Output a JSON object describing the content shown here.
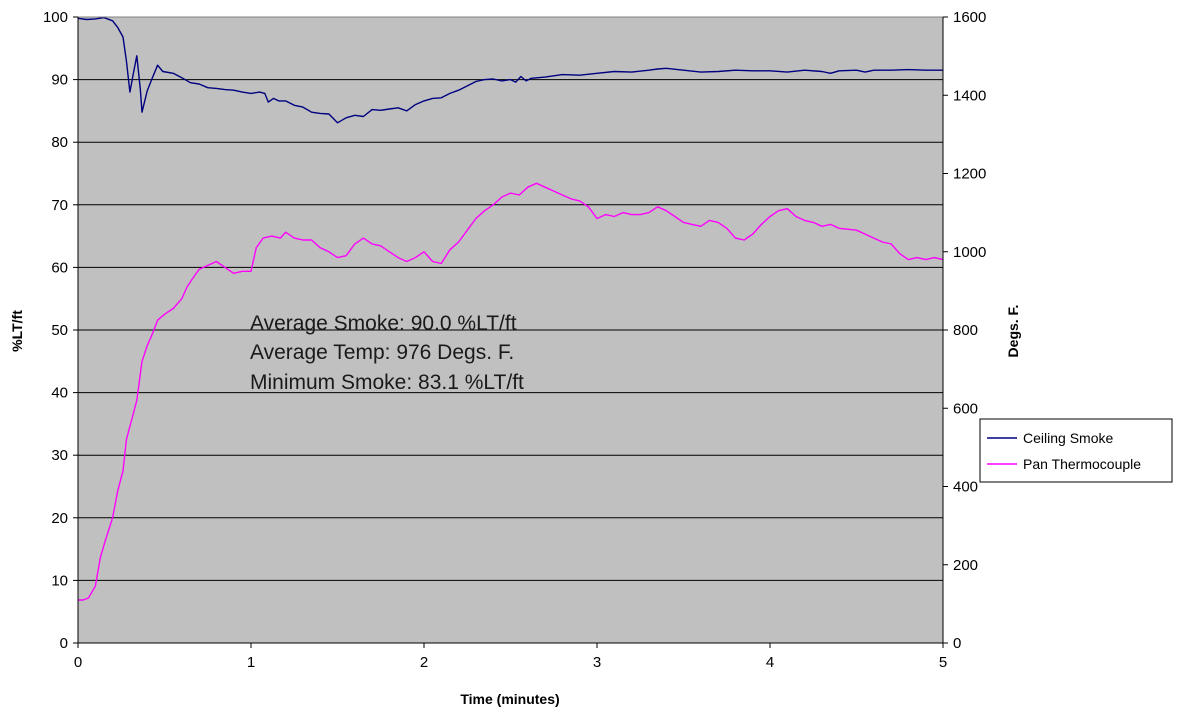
{
  "chart_data": {
    "type": "line",
    "title": "",
    "xlabel": "Time (minutes)",
    "ylabel_left": "%LT/ft",
    "ylabel_right": "Degs. F.",
    "xlim": [
      0,
      5
    ],
    "ylim_left": [
      0,
      100
    ],
    "ylim_right": [
      0,
      1600
    ],
    "x_ticks": [
      0,
      1,
      2,
      3,
      4,
      5
    ],
    "y_ticks_left": [
      0,
      10,
      20,
      30,
      40,
      50,
      60,
      70,
      80,
      90,
      100
    ],
    "y_ticks_right": [
      0,
      200,
      400,
      600,
      800,
      1000,
      1200,
      1400,
      1600
    ],
    "grid": "horizontal",
    "plot_background": "#c0c0c0",
    "legend_position": "right",
    "annotations": [
      "Average Smoke: 90.0 %LT/ft",
      "Average Temp: 976 Degs. F.",
      "Minimum Smoke: 83.1 %LT/ft"
    ],
    "series": [
      {
        "name": "Ceiling Smoke",
        "axis": "left",
        "color": "#000080",
        "points": [
          [
            0,
            99.8
          ],
          [
            0.05,
            99.6
          ],
          [
            0.1,
            99.7
          ],
          [
            0.15,
            99.9
          ],
          [
            0.2,
            99.4
          ],
          [
            0.23,
            98.3
          ],
          [
            0.26,
            96.8
          ],
          [
            0.28,
            93.0
          ],
          [
            0.3,
            88.0
          ],
          [
            0.32,
            91.0
          ],
          [
            0.34,
            93.8
          ],
          [
            0.36,
            88.5
          ],
          [
            0.37,
            84.8
          ],
          [
            0.4,
            88.2
          ],
          [
            0.43,
            90.3
          ],
          [
            0.46,
            92.3
          ],
          [
            0.49,
            91.3
          ],
          [
            0.55,
            91.0
          ],
          [
            0.6,
            90.3
          ],
          [
            0.65,
            89.5
          ],
          [
            0.7,
            89.3
          ],
          [
            0.75,
            88.7
          ],
          [
            0.8,
            88.6
          ],
          [
            0.85,
            88.4
          ],
          [
            0.9,
            88.3
          ],
          [
            0.95,
            88.0
          ],
          [
            1.0,
            87.8
          ],
          [
            1.05,
            88.0
          ],
          [
            1.08,
            87.8
          ],
          [
            1.1,
            86.4
          ],
          [
            1.13,
            87.0
          ],
          [
            1.16,
            86.6
          ],
          [
            1.2,
            86.6
          ],
          [
            1.25,
            85.9
          ],
          [
            1.3,
            85.6
          ],
          [
            1.35,
            84.8
          ],
          [
            1.4,
            84.6
          ],
          [
            1.45,
            84.5
          ],
          [
            1.5,
            83.1
          ],
          [
            1.55,
            83.9
          ],
          [
            1.6,
            84.3
          ],
          [
            1.65,
            84.1
          ],
          [
            1.7,
            85.2
          ],
          [
            1.75,
            85.1
          ],
          [
            1.8,
            85.3
          ],
          [
            1.85,
            85.5
          ],
          [
            1.9,
            85.0
          ],
          [
            1.95,
            86.0
          ],
          [
            2.0,
            86.6
          ],
          [
            2.05,
            87.0
          ],
          [
            2.1,
            87.1
          ],
          [
            2.15,
            87.8
          ],
          [
            2.2,
            88.3
          ],
          [
            2.25,
            89.0
          ],
          [
            2.3,
            89.7
          ],
          [
            2.35,
            90.0
          ],
          [
            2.4,
            90.1
          ],
          [
            2.45,
            89.8
          ],
          [
            2.5,
            90.0
          ],
          [
            2.53,
            89.6
          ],
          [
            2.56,
            90.5
          ],
          [
            2.59,
            89.8
          ],
          [
            2.62,
            90.2
          ],
          [
            2.7,
            90.4
          ],
          [
            2.8,
            90.8
          ],
          [
            2.9,
            90.7
          ],
          [
            3.0,
            91.0
          ],
          [
            3.1,
            91.3
          ],
          [
            3.2,
            91.2
          ],
          [
            3.3,
            91.5
          ],
          [
            3.35,
            91.7
          ],
          [
            3.4,
            91.8
          ],
          [
            3.5,
            91.5
          ],
          [
            3.6,
            91.2
          ],
          [
            3.7,
            91.3
          ],
          [
            3.8,
            91.5
          ],
          [
            3.9,
            91.4
          ],
          [
            4.0,
            91.4
          ],
          [
            4.1,
            91.2
          ],
          [
            4.2,
            91.5
          ],
          [
            4.3,
            91.3
          ],
          [
            4.35,
            91.0
          ],
          [
            4.4,
            91.4
          ],
          [
            4.5,
            91.5
          ],
          [
            4.55,
            91.2
          ],
          [
            4.6,
            91.5
          ],
          [
            4.7,
            91.5
          ],
          [
            4.8,
            91.6
          ],
          [
            4.9,
            91.5
          ],
          [
            5.0,
            91.5
          ]
        ]
      },
      {
        "name": "Pan Thermocouple",
        "axis": "right",
        "color": "#ff00ff",
        "points": [
          [
            0,
            110
          ],
          [
            0.03,
            110
          ],
          [
            0.06,
            115
          ],
          [
            0.1,
            145
          ],
          [
            0.13,
            220
          ],
          [
            0.16,
            265
          ],
          [
            0.2,
            320
          ],
          [
            0.23,
            390
          ],
          [
            0.26,
            440
          ],
          [
            0.28,
            520
          ],
          [
            0.31,
            570
          ],
          [
            0.34,
            620
          ],
          [
            0.37,
            720
          ],
          [
            0.4,
            760
          ],
          [
            0.43,
            790
          ],
          [
            0.46,
            825
          ],
          [
            0.5,
            840
          ],
          [
            0.55,
            855
          ],
          [
            0.6,
            880
          ],
          [
            0.63,
            910
          ],
          [
            0.66,
            930
          ],
          [
            0.7,
            955
          ],
          [
            0.75,
            965
          ],
          [
            0.8,
            975
          ],
          [
            0.85,
            960
          ],
          [
            0.9,
            945
          ],
          [
            0.95,
            950
          ],
          [
            1.0,
            950
          ],
          [
            1.03,
            1010
          ],
          [
            1.07,
            1035
          ],
          [
            1.12,
            1040
          ],
          [
            1.17,
            1035
          ],
          [
            1.2,
            1050
          ],
          [
            1.25,
            1035
          ],
          [
            1.3,
            1030
          ],
          [
            1.35,
            1030
          ],
          [
            1.4,
            1010
          ],
          [
            1.45,
            1000
          ],
          [
            1.5,
            985
          ],
          [
            1.55,
            990
          ],
          [
            1.6,
            1020
          ],
          [
            1.65,
            1035
          ],
          [
            1.7,
            1020
          ],
          [
            1.75,
            1015
          ],
          [
            1.8,
            1000
          ],
          [
            1.85,
            985
          ],
          [
            1.9,
            975
          ],
          [
            1.95,
            985
          ],
          [
            2.0,
            1000
          ],
          [
            2.05,
            975
          ],
          [
            2.1,
            970
          ],
          [
            2.15,
            1005
          ],
          [
            2.2,
            1025
          ],
          [
            2.25,
            1055
          ],
          [
            2.3,
            1085
          ],
          [
            2.35,
            1105
          ],
          [
            2.4,
            1120
          ],
          [
            2.45,
            1140
          ],
          [
            2.5,
            1150
          ],
          [
            2.55,
            1145
          ],
          [
            2.6,
            1165
          ],
          [
            2.65,
            1175
          ],
          [
            2.7,
            1165
          ],
          [
            2.75,
            1155
          ],
          [
            2.8,
            1145
          ],
          [
            2.85,
            1135
          ],
          [
            2.9,
            1130
          ],
          [
            2.95,
            1115
          ],
          [
            3.0,
            1085
          ],
          [
            3.05,
            1095
          ],
          [
            3.1,
            1090
          ],
          [
            3.15,
            1100
          ],
          [
            3.2,
            1095
          ],
          [
            3.25,
            1095
          ],
          [
            3.3,
            1100
          ],
          [
            3.35,
            1115
          ],
          [
            3.4,
            1105
          ],
          [
            3.45,
            1090
          ],
          [
            3.5,
            1075
          ],
          [
            3.55,
            1070
          ],
          [
            3.6,
            1065
          ],
          [
            3.65,
            1080
          ],
          [
            3.7,
            1075
          ],
          [
            3.75,
            1060
          ],
          [
            3.8,
            1035
          ],
          [
            3.85,
            1030
          ],
          [
            3.9,
            1045
          ],
          [
            3.95,
            1070
          ],
          [
            4.0,
            1090
          ],
          [
            4.05,
            1105
          ],
          [
            4.1,
            1110
          ],
          [
            4.15,
            1090
          ],
          [
            4.2,
            1080
          ],
          [
            4.25,
            1075
          ],
          [
            4.3,
            1065
          ],
          [
            4.35,
            1070
          ],
          [
            4.4,
            1060
          ],
          [
            4.5,
            1055
          ],
          [
            4.55,
            1045
          ],
          [
            4.6,
            1035
          ],
          [
            4.65,
            1025
          ],
          [
            4.7,
            1020
          ],
          [
            4.75,
            995
          ],
          [
            4.8,
            980
          ],
          [
            4.85,
            985
          ],
          [
            4.9,
            980
          ],
          [
            4.95,
            985
          ],
          [
            5.0,
            980
          ]
        ]
      }
    ]
  }
}
